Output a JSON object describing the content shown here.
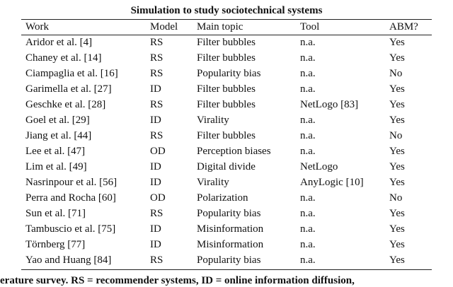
{
  "table": {
    "title": "Simulation to study sociotechnical systems",
    "columns": [
      "Work",
      "Model",
      "Main topic",
      "Tool",
      "ABM?"
    ],
    "rows": [
      [
        "Aridor et al. [4]",
        "RS",
        "Filter bubbles",
        "n.a.",
        "Yes"
      ],
      [
        "Chaney et al. [14]",
        "RS",
        "Filter bubbles",
        "n.a.",
        "Yes"
      ],
      [
        "Ciampaglia et al. [16]",
        "RS",
        "Popularity bias",
        "n.a.",
        "No"
      ],
      [
        "Garimella et al. [27]",
        "ID",
        "Filter bubbles",
        "n.a.",
        "Yes"
      ],
      [
        "Geschke et al. [28]",
        "RS",
        "Filter bubbles",
        "NetLogo [83]",
        "Yes"
      ],
      [
        "Goel et al. [29]",
        "ID",
        "Virality",
        "n.a.",
        "Yes"
      ],
      [
        "Jiang et al. [44]",
        "RS",
        "Filter bubbles",
        "n.a.",
        "No"
      ],
      [
        "Lee et al. [47]",
        "OD",
        "Perception biases",
        "n.a.",
        "Yes"
      ],
      [
        "Lim et al. [49]",
        "ID",
        "Digital divide",
        "NetLogo",
        "Yes"
      ],
      [
        "Nasrinpour et al. [56]",
        "ID",
        "Virality",
        "AnyLogic [10]",
        "Yes"
      ],
      [
        "Perra and Rocha [60]",
        "OD",
        "Polarization",
        "n.a.",
        "No"
      ],
      [
        "Sun et al. [71]",
        "RS",
        "Popularity bias",
        "n.a.",
        "Yes"
      ],
      [
        "Tambuscio et al. [75]",
        "ID",
        "Misinformation",
        "n.a.",
        "Yes"
      ],
      [
        "Törnberg [77]",
        "ID",
        "Misinformation",
        "n.a.",
        "Yes"
      ],
      [
        "Yao and Huang [84]",
        "RS",
        "Popularity bias",
        "n.a.",
        "Yes"
      ]
    ]
  },
  "caption": "erature survey. RS = recommender systems, ID = online information diffusion,"
}
